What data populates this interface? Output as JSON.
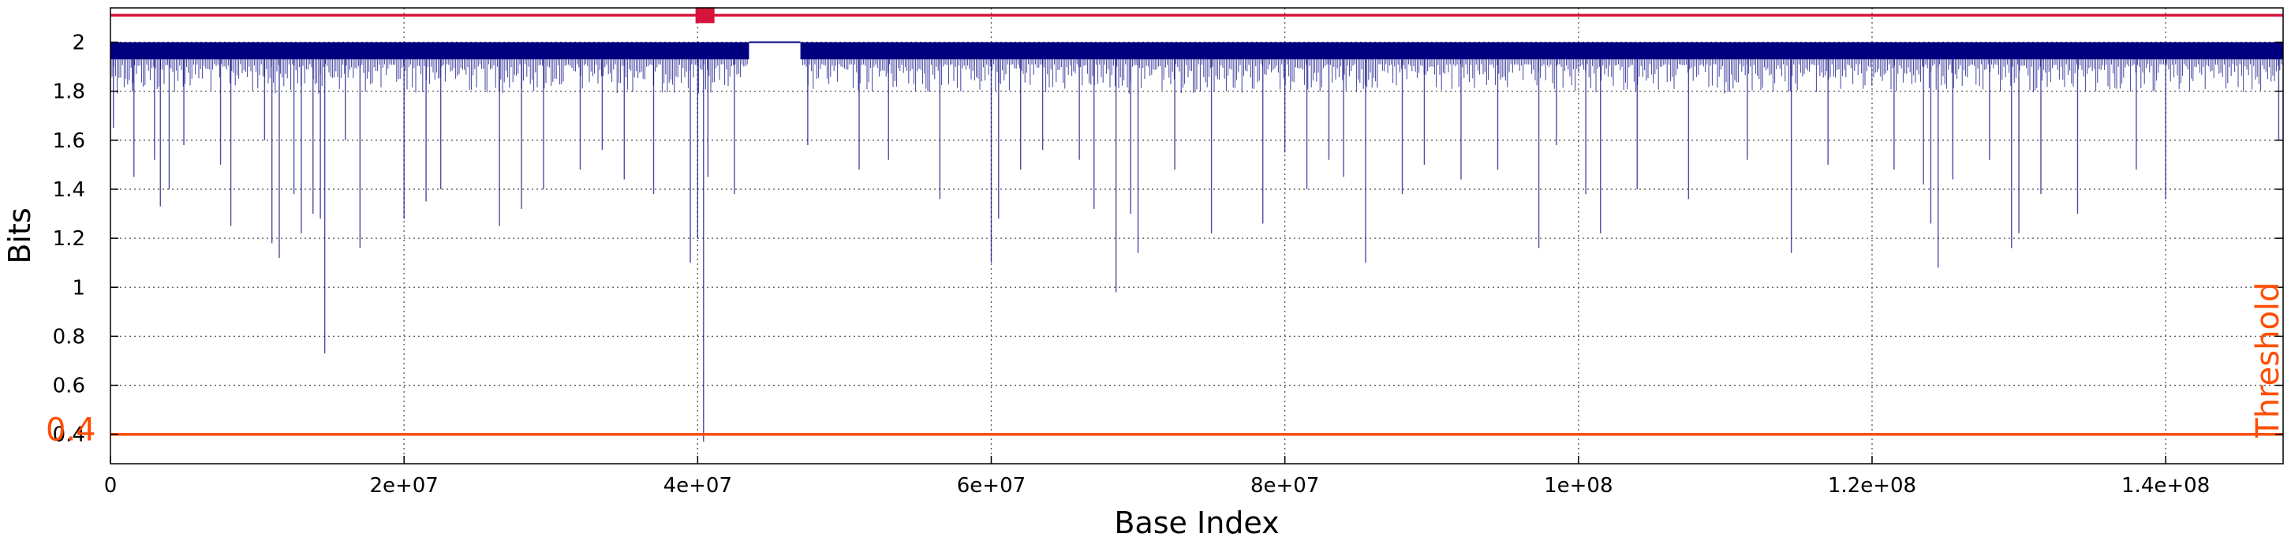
{
  "chart_data": {
    "type": "line",
    "xlabel": "Base Index",
    "ylabel": "Bits",
    "xlim": [
      0,
      148000000
    ],
    "ylim": [
      0.28,
      2.14
    ],
    "grid": true,
    "x_ticks": [
      {
        "value": 0,
        "label": "0"
      },
      {
        "value": 20000000,
        "label": "2e+07"
      },
      {
        "value": 40000000,
        "label": "4e+07"
      },
      {
        "value": 60000000,
        "label": "6e+07"
      },
      {
        "value": 80000000,
        "label": "8e+07"
      },
      {
        "value": 100000000,
        "label": "1e+08"
      },
      {
        "value": 120000000,
        "label": "1.2e+08"
      },
      {
        "value": 140000000,
        "label": "1.4e+08"
      }
    ],
    "y_ticks": [
      {
        "value": 0.4,
        "label": "0.4"
      },
      {
        "value": 0.6,
        "label": "0.6"
      },
      {
        "value": 0.8,
        "label": "0.8"
      },
      {
        "value": 1.0,
        "label": "1"
      },
      {
        "value": 1.2,
        "label": "1.2"
      },
      {
        "value": 1.4,
        "label": "1.4"
      },
      {
        "value": 1.6,
        "label": "1.6"
      },
      {
        "value": 1.8,
        "label": "1.8"
      },
      {
        "value": 2.0,
        "label": "2"
      }
    ],
    "series": [
      {
        "color": "#00007f",
        "baseline": 2.0,
        "band_floor": 1.93,
        "gap": [
          43500000,
          47000000
        ],
        "dips": [
          [
            200000,
            1.65
          ],
          [
            1500000,
            1.8
          ],
          [
            1600000,
            1.45
          ],
          [
            3000000,
            1.52
          ],
          [
            3400000,
            1.33
          ],
          [
            4000000,
            1.4
          ],
          [
            5000000,
            1.58
          ],
          [
            7500000,
            1.5
          ],
          [
            8200000,
            1.25
          ],
          [
            10500000,
            1.6
          ],
          [
            11000000,
            1.18
          ],
          [
            11500000,
            1.12
          ],
          [
            12500000,
            1.38
          ],
          [
            13000000,
            1.22
          ],
          [
            13800000,
            1.3
          ],
          [
            14300000,
            1.28
          ],
          [
            14600000,
            0.73
          ],
          [
            16000000,
            1.6
          ],
          [
            17000000,
            1.16
          ],
          [
            20000000,
            1.28
          ],
          [
            21500000,
            1.35
          ],
          [
            22500000,
            1.4
          ],
          [
            26500000,
            1.25
          ],
          [
            28000000,
            1.32
          ],
          [
            29500000,
            1.4
          ],
          [
            32000000,
            1.48
          ],
          [
            33500000,
            1.56
          ],
          [
            35000000,
            1.44
          ],
          [
            37000000,
            1.38
          ],
          [
            39500000,
            1.1
          ],
          [
            40000000,
            1.2
          ],
          [
            40400000,
            0.37
          ],
          [
            40700000,
            1.45
          ],
          [
            42500000,
            1.38
          ],
          [
            47500000,
            1.58
          ],
          [
            51000000,
            1.48
          ],
          [
            53000000,
            1.52
          ],
          [
            56500000,
            1.36
          ],
          [
            60000000,
            1.1
          ],
          [
            60500000,
            1.28
          ],
          [
            62000000,
            1.48
          ],
          [
            63500000,
            1.56
          ],
          [
            66000000,
            1.52
          ],
          [
            67000000,
            1.32
          ],
          [
            68500000,
            0.98
          ],
          [
            69500000,
            1.3
          ],
          [
            70000000,
            1.14
          ],
          [
            72500000,
            1.48
          ],
          [
            75000000,
            1.22
          ],
          [
            78500000,
            1.26
          ],
          [
            80000000,
            1.55
          ],
          [
            81500000,
            1.4
          ],
          [
            83000000,
            1.52
          ],
          [
            84000000,
            1.45
          ],
          [
            85500000,
            1.1
          ],
          [
            88000000,
            1.38
          ],
          [
            89500000,
            1.5
          ],
          [
            92000000,
            1.44
          ],
          [
            94500000,
            1.48
          ],
          [
            97300000,
            1.16
          ],
          [
            98500000,
            1.58
          ],
          [
            100500000,
            1.38
          ],
          [
            101500000,
            1.22
          ],
          [
            104000000,
            1.4
          ],
          [
            107500000,
            1.36
          ],
          [
            111500000,
            1.52
          ],
          [
            114500000,
            1.14
          ],
          [
            117000000,
            1.5
          ],
          [
            121500000,
            1.48
          ],
          [
            123500000,
            1.42
          ],
          [
            124000000,
            1.26
          ],
          [
            124500000,
            1.08
          ],
          [
            125500000,
            1.44
          ],
          [
            128000000,
            1.52
          ],
          [
            129500000,
            1.16
          ],
          [
            130000000,
            1.22
          ],
          [
            131500000,
            1.38
          ],
          [
            134000000,
            1.3
          ],
          [
            138000000,
            1.48
          ],
          [
            140000000,
            1.36
          ],
          [
            147700000,
            1.6
          ]
        ]
      }
    ],
    "threshold": {
      "value": 0.4,
      "value_label": "0.4",
      "name": "Threshold",
      "color": "#ff4d00"
    },
    "top_line": {
      "value": 2.11,
      "color": "#d6143c"
    },
    "marker": {
      "x": 40500000,
      "y": 2.11,
      "color": "#d6143c"
    }
  }
}
